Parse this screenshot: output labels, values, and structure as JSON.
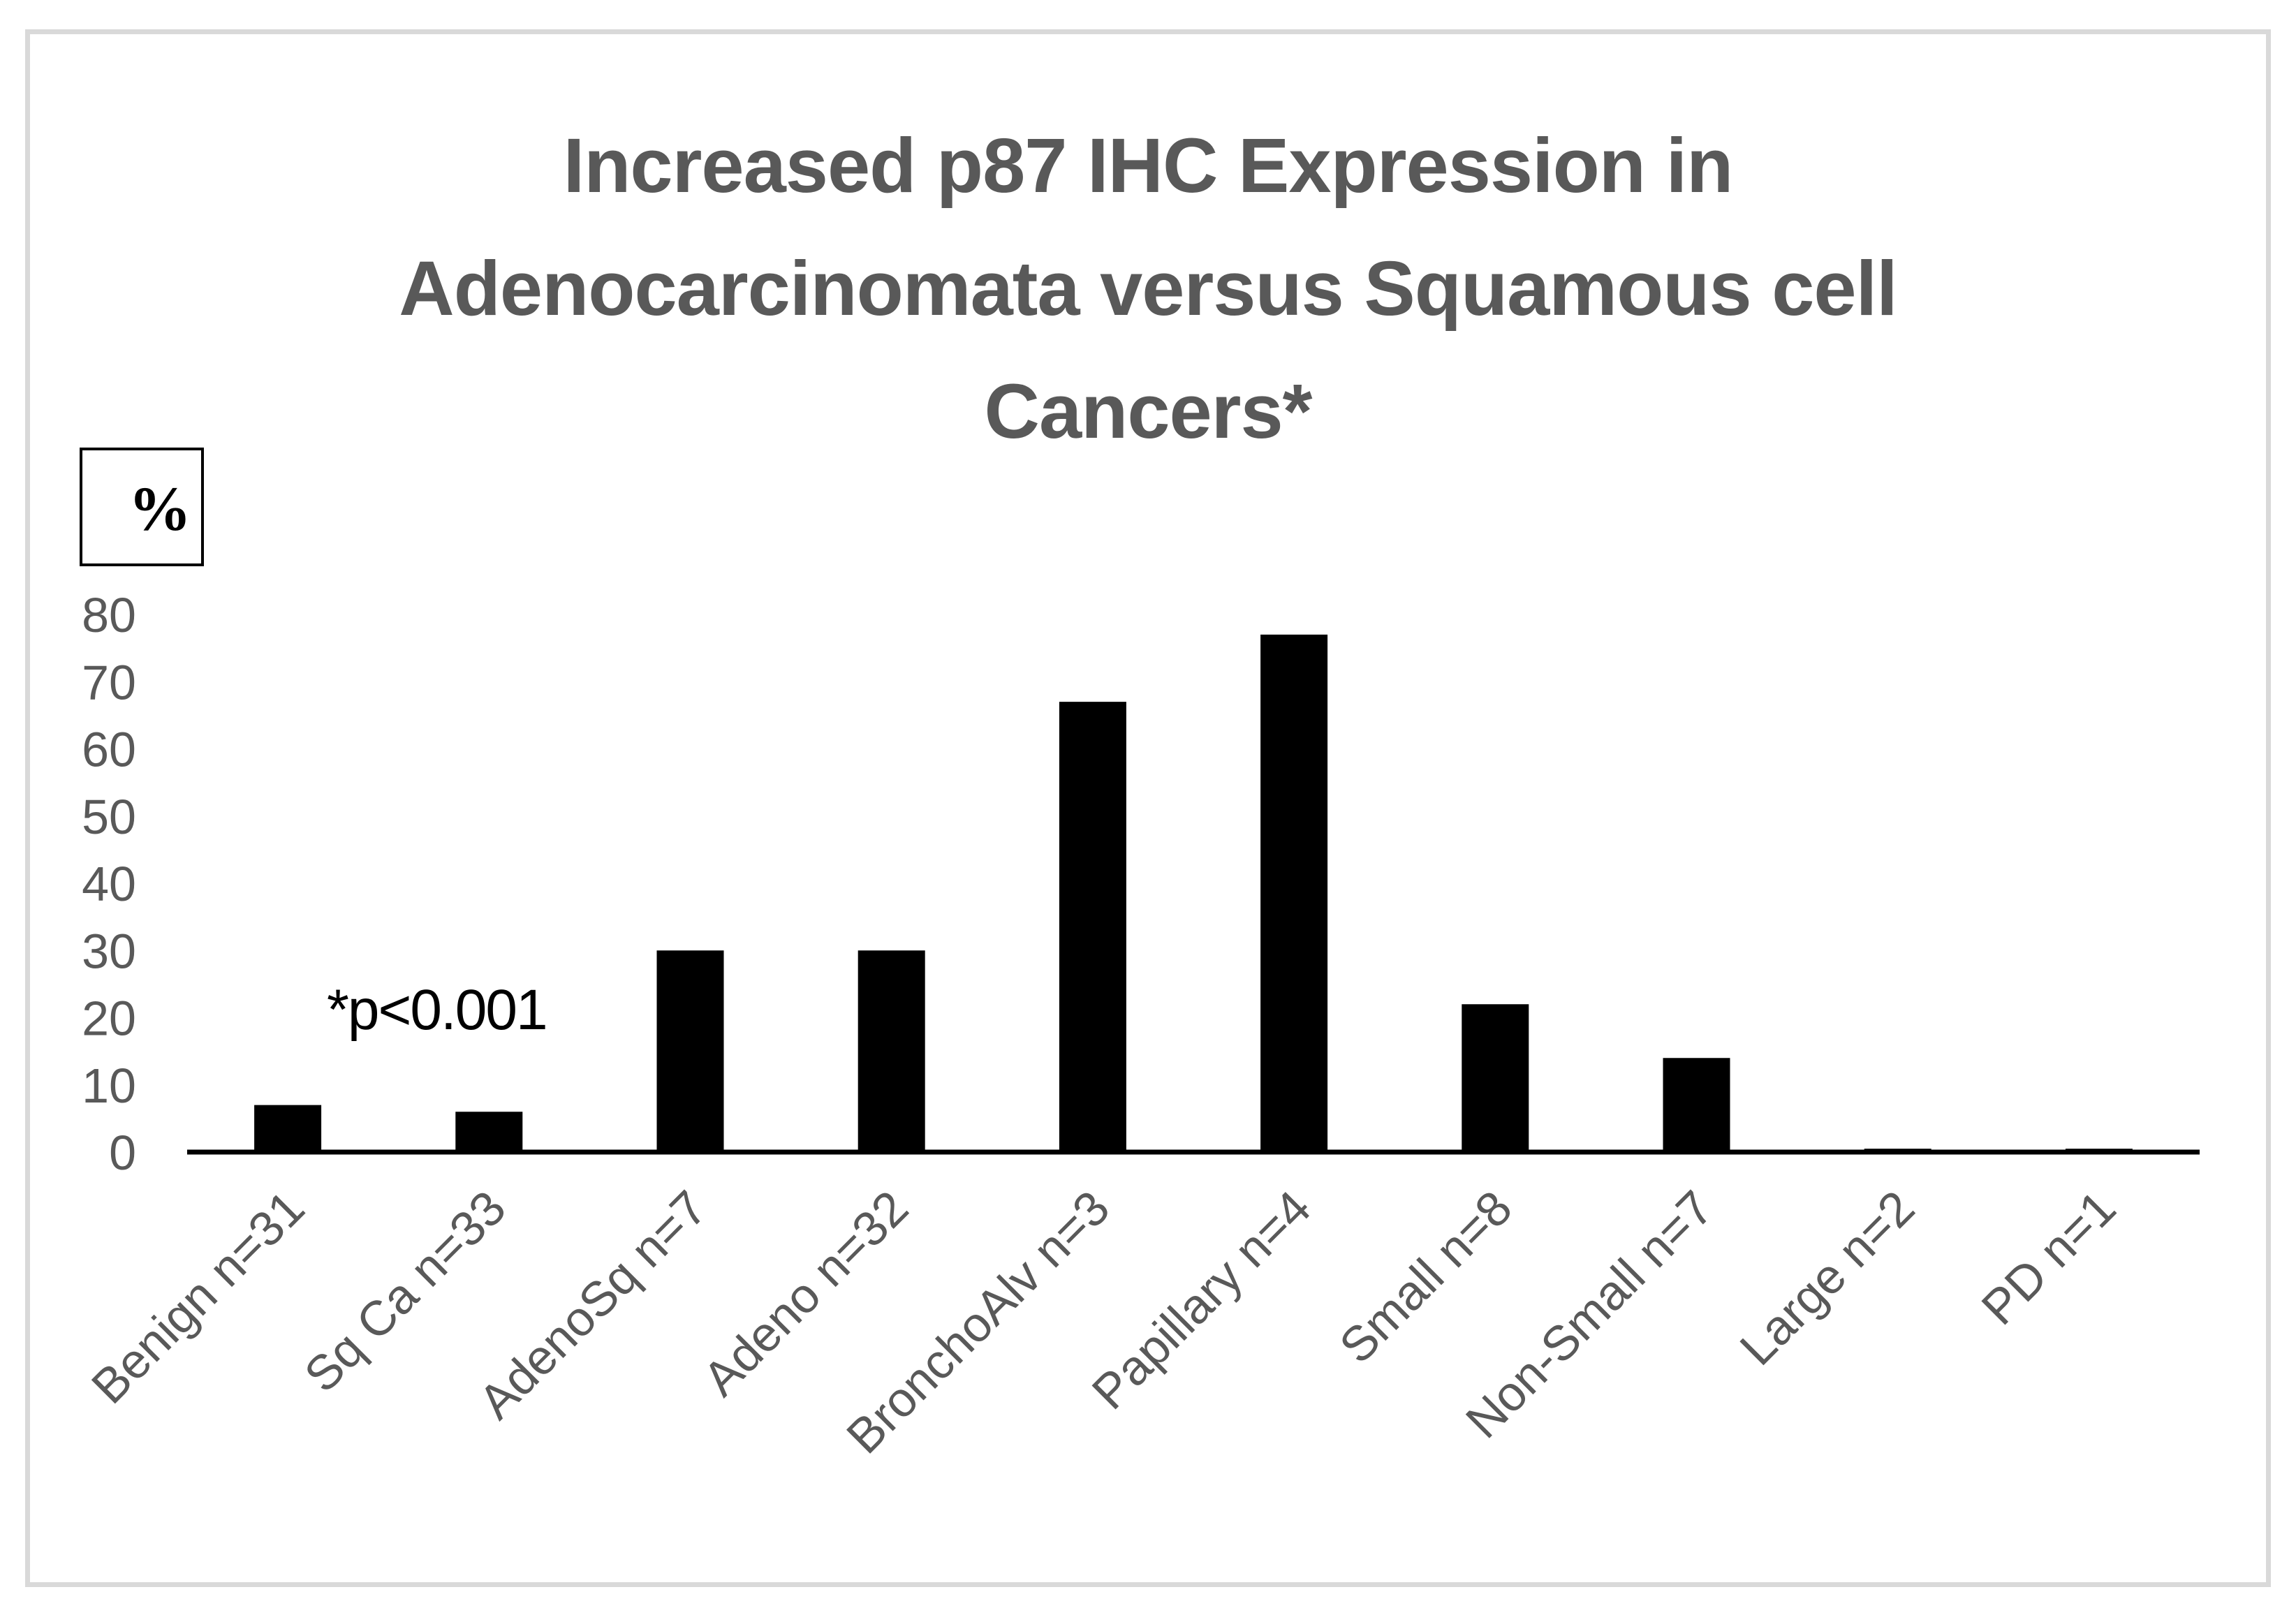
{
  "chart_data": {
    "type": "bar",
    "title_lines": [
      "Increased p87 IHC Expression in",
      "Adenocarcinomata versus Squamous cell",
      "Cancers*"
    ],
    "ylabel": "%",
    "annotation": "*p<0.001",
    "categories": [
      "Benign n=31",
      "Sq Ca n=33",
      "AdenoSq n=7",
      "Adeno n=32",
      "BronchoAlv n=3",
      "Papillary n=4",
      "Small n=8",
      "Non-Small n=7",
      "Large n=2",
      "PD n=1"
    ],
    "values": [
      7,
      6,
      30,
      30,
      67,
      77,
      22,
      14,
      0.5,
      0.5
    ],
    "ylim": [
      0,
      80
    ],
    "yticks": [
      0,
      10,
      20,
      30,
      40,
      50,
      60,
      70,
      80
    ],
    "grid": false,
    "bar_color": "#000000"
  }
}
